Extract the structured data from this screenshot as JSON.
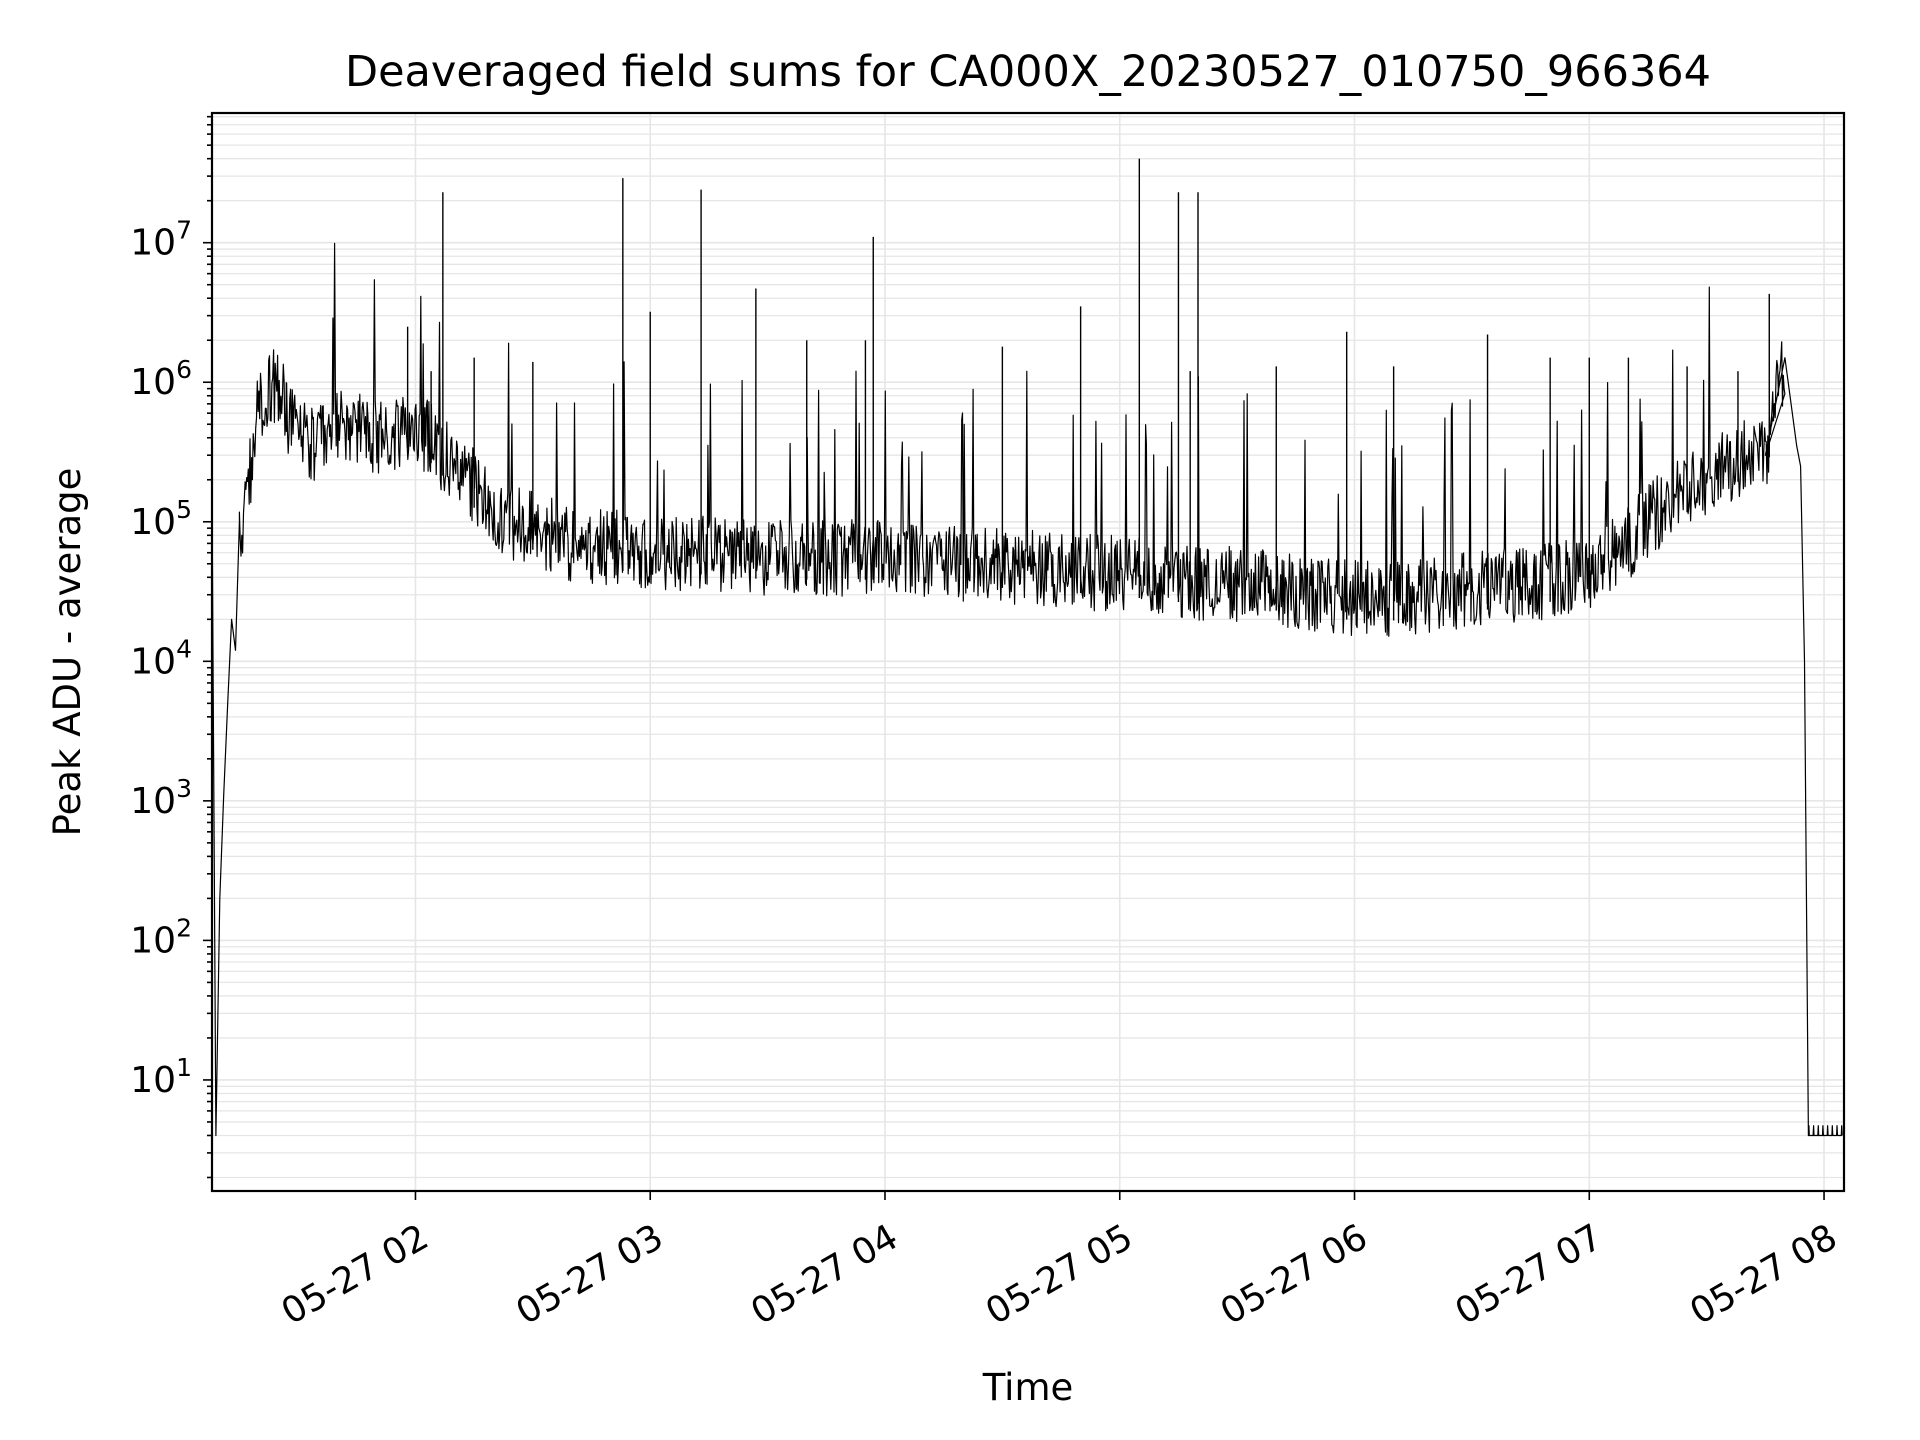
{
  "chart_data": {
    "type": "line",
    "title": "Deaveraged field sums for CA000X_20230527_010750_966364",
    "xlabel": "Time",
    "ylabel": "Peak ADU - average",
    "yscale": "log",
    "grid": true,
    "x_tick_labels": [
      "05-27 02",
      "05-27 03",
      "05-27 04",
      "05-27 05",
      "05-27 06",
      "05-27 07",
      "05-27 08"
    ],
    "x_tick_hours": [
      2,
      3,
      4,
      5,
      6,
      7,
      8
    ],
    "y_tick_base": "10",
    "y_tick_exponents": [
      "1",
      "2",
      "3",
      "4",
      "5",
      "6",
      "7"
    ],
    "xlim": [
      "05-27 01:08",
      "05-27 08:00"
    ],
    "ylim": [
      1.6,
      85000000
    ],
    "colors": {
      "line": "#000000",
      "grid": "#e6e6e6",
      "axes": "#000000"
    },
    "series": [
      {
        "values_note": "",
        "x": [
          "05-27 01:08",
          "05-27 01:08",
          "05-27 01:09",
          "05-27 01:09",
          "05-27 01:10",
          "05-27 01:11",
          "05-27 01:12",
          "05-27 01:13",
          "05-27 01:14",
          "05-27 01:15",
          "05-27 01:17",
          "05-27 01:19",
          "05-27 01:22",
          "05-27 01:25",
          "05-27 01:28",
          "05-27 01:31",
          "05-27 01:35",
          "05-27 01:40",
          "05-27 01:45",
          "05-27 01:50",
          "05-27 01:55",
          "05-27 02:00",
          "05-27 02:05",
          "05-27 02:10",
          "05-27 02:15",
          "05-27 02:20",
          "05-27 02:25",
          "05-27 02:30",
          "05-27 02:35",
          "05-27 02:40",
          "05-27 02:50",
          "05-27 03:00",
          "05-27 03:15",
          "05-27 03:30",
          "05-27 03:45",
          "05-27 04:00",
          "05-27 04:15",
          "05-27 04:30",
          "05-27 04:45",
          "05-27 05:00",
          "05-27 05:15",
          "05-27 05:30",
          "05-27 05:45",
          "05-27 06:00",
          "05-27 06:15",
          "05-27 06:30",
          "05-27 06:45",
          "05-27 07:00",
          "05-27 07:10",
          "05-27 07:20",
          "05-27 07:30",
          "05-27 07:40",
          "05-27 07:45",
          "05-27 07:50",
          "05-27 07:53",
          "05-27 07:54",
          "05-27 07:55",
          "05-27 07:56",
          "05-27 08:00"
        ],
        "y": [
          1.6,
          170000,
          4,
          4,
          200,
          1100,
          5000,
          20000,
          12000,
          100000,
          130000,
          500000,
          900000,
          1000000,
          500000,
          400000,
          350000,
          500000,
          450000,
          400000,
          450000,
          500000,
          350000,
          250000,
          180000,
          120000,
          100000,
          90000,
          80000,
          70000,
          65000,
          60000,
          60000,
          55000,
          55000,
          55000,
          50000,
          48000,
          45000,
          42000,
          38000,
          35000,
          32000,
          28000,
          28000,
          33000,
          35000,
          45000,
          70000,
          140000,
          200000,
          300000,
          300000,
          1500000,
          350000,
          250000,
          10000,
          4,
          4
        ]
      }
    ],
    "spikes": {
      "x": [
        "05-27 01:27",
        "05-27 01:58",
        "05-27 02:04",
        "05-27 02:07",
        "05-27 02:15",
        "05-27 02:30",
        "05-27 02:53",
        "05-27 03:00",
        "05-27 03:13",
        "05-27 03:27",
        "05-27 03:40",
        "05-27 03:55",
        "05-27 03:57",
        "05-27 04:30",
        "05-27 04:50",
        "05-27 05:05",
        "05-27 05:15",
        "05-27 05:18",
        "05-27 05:20",
        "05-27 05:40",
        "05-27 05:58",
        "05-27 06:10",
        "05-27 06:34",
        "05-27 06:50",
        "05-27 07:00",
        "05-27 07:10",
        "05-27 07:25",
        "05-27 07:38",
        "05-27 07:46"
      ],
      "y": [
        1000000,
        2500000,
        1200000,
        23000000,
        1500000,
        1400000,
        29000000,
        3200000,
        24000000,
        4700000,
        2000000,
        2000000,
        11000000,
        1800000,
        3500000,
        40000000,
        23000000,
        1200000,
        23000000,
        1300000,
        2300000,
        1300000,
        2200000,
        1500000,
        1500000,
        1500000,
        1300000,
        1200000,
        4300000
      ]
    }
  }
}
